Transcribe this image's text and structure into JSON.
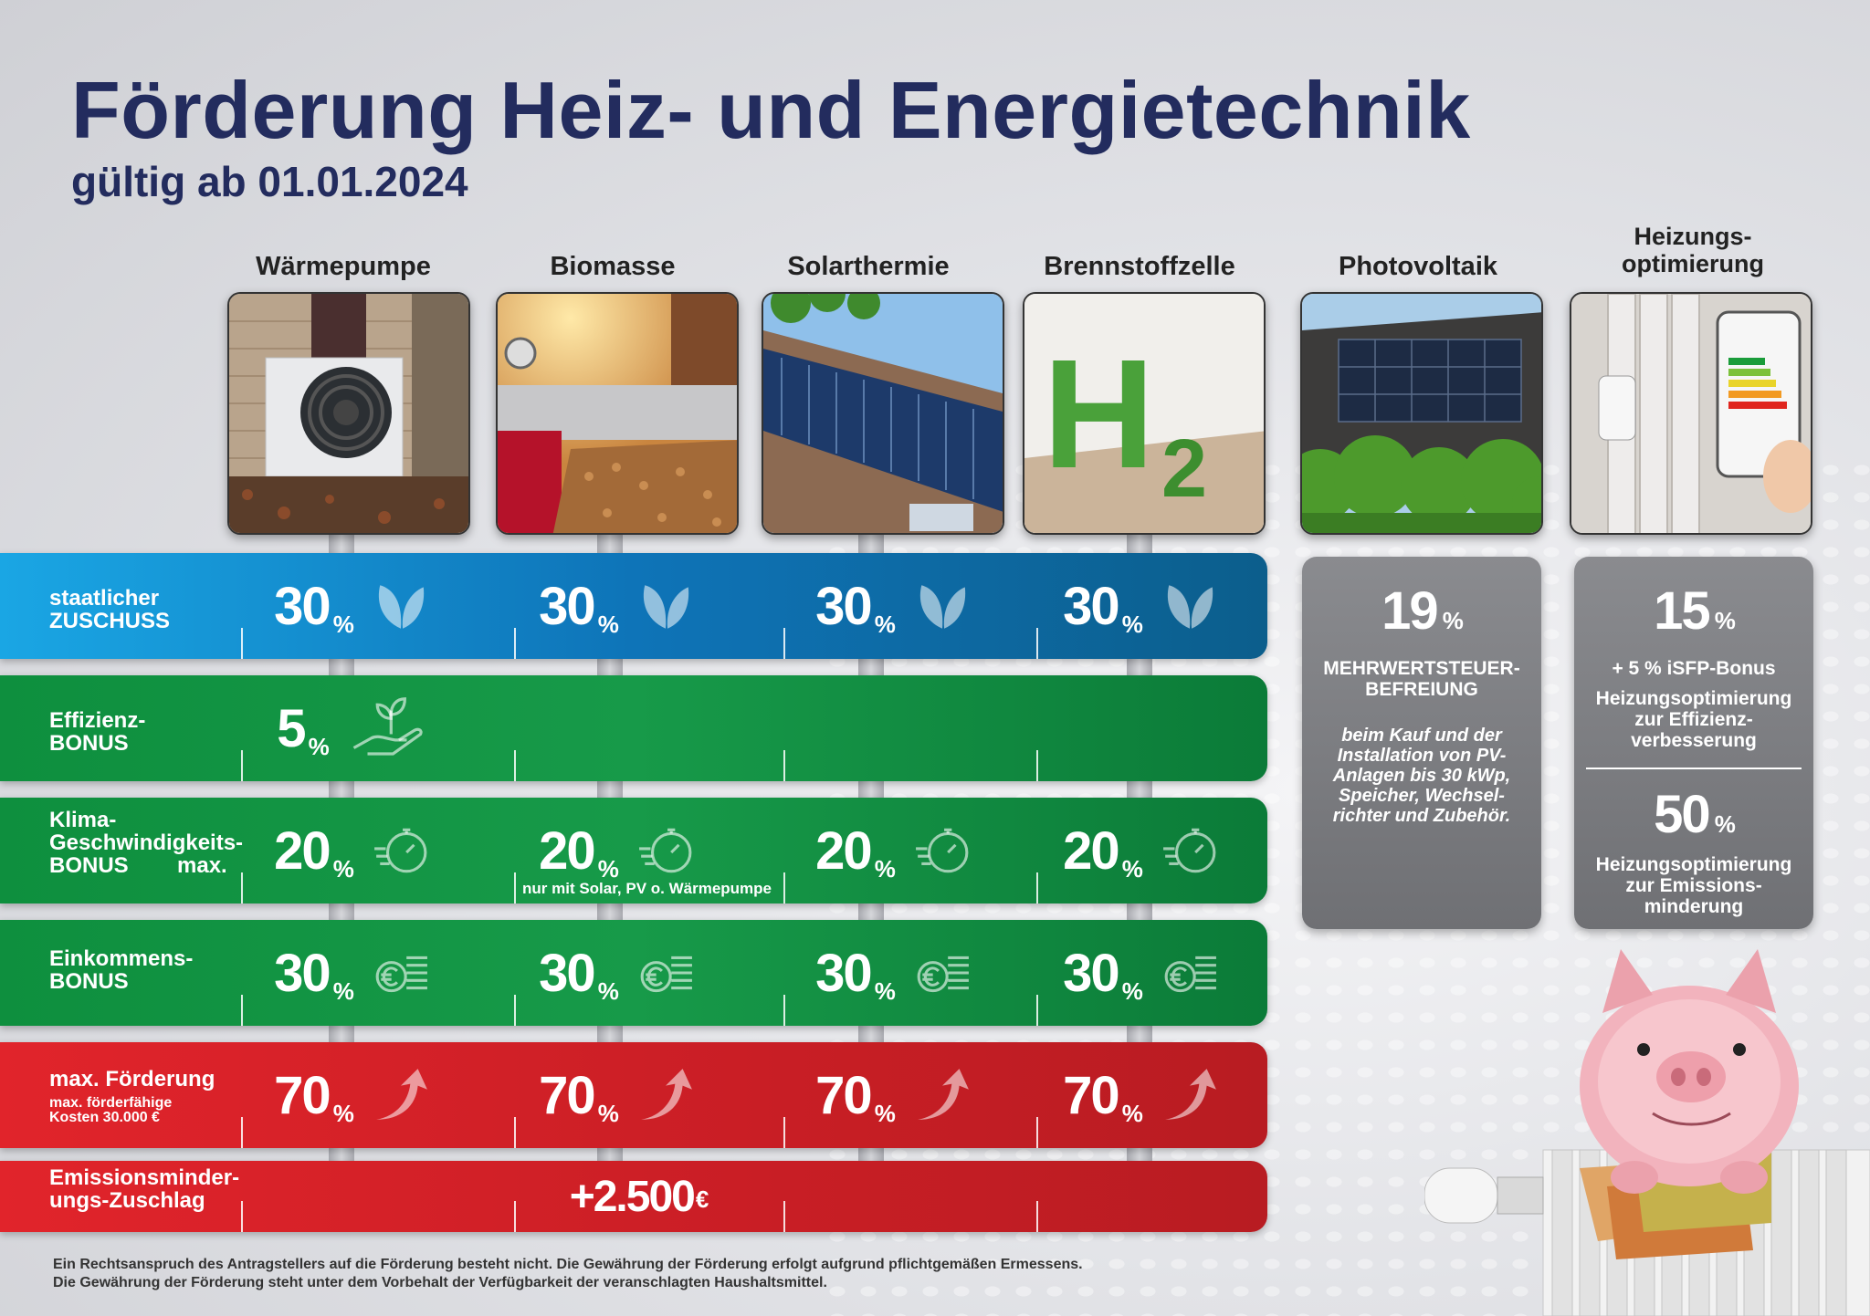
{
  "header": {
    "title": "Förderung Heiz- und Energietechnik",
    "subtitle": "gültig ab 01.01.2024"
  },
  "columns": [
    {
      "label": "Wärmepumpe"
    },
    {
      "label": "Biomasse"
    },
    {
      "label": "Solarthermie"
    },
    {
      "label": "Brennstoffzelle"
    },
    {
      "label": "Photovoltaik"
    },
    {
      "label": "Heizungs-\noptimierung"
    }
  ],
  "rows": {
    "zuschuss": {
      "label_line1": "staatlicher",
      "label_line2": "ZUSCHUSS",
      "values": [
        "30",
        "30",
        "30",
        "30"
      ],
      "unit": "%",
      "icon": "leaf-icon"
    },
    "effizienz": {
      "label_line1": "Effizienz-",
      "label_line2": "BONUS",
      "value": "5",
      "unit": "%",
      "icon": "plant-hand-icon"
    },
    "klima": {
      "label_line1": "Klima-",
      "label_line2": "Geschwindigkeits-",
      "label_line3": "BONUS        max.",
      "values": [
        "20",
        "20",
        "20",
        "20"
      ],
      "unit": "%",
      "note": "nur mit Solar, PV o. Wärmepumpe",
      "icon": "stopwatch-icon"
    },
    "einkommen": {
      "label_line1": "Einkommens-",
      "label_line2": "BONUS",
      "values": [
        "30",
        "30",
        "30",
        "30"
      ],
      "unit": "%",
      "icon": "euro-coins-icon"
    },
    "max": {
      "label_line1": "max. Förderung",
      "label_small1": "max. förderfähige",
      "label_small2": "Kosten 30.000 €",
      "values": [
        "70",
        "70",
        "70",
        "70"
      ],
      "unit": "%",
      "icon": "arrow-up-icon"
    },
    "emission": {
      "label_line1": "Emissionsminder-",
      "label_line2": "ungs-Zuschlag",
      "value": "+2.500",
      "unit": "€"
    }
  },
  "photovoltaik_box": {
    "value": "19",
    "unit": "%",
    "heading1": "MEHRWERTSTEUER-",
    "heading2": "BEFREIUNG",
    "text1": "beim Kauf und der",
    "text2": "Installation von PV-",
    "text3": "Anlagen bis 30 kWp,",
    "text4": "Speicher, Wechsel-",
    "text5": "richter und Zubehör."
  },
  "optimierung_box": {
    "value1": "15",
    "unit": "%",
    "bonus": "+ 5 % iSFP-Bonus",
    "text1a": "Heizungsoptimierung",
    "text1b": "zur Effizienz-",
    "text1c": "verbesserung",
    "value2": "50",
    "text2a": "Heizungsoptimierung",
    "text2b": "zur Emissions-",
    "text2c": "minderung"
  },
  "footer": {
    "line1": "Ein Rechtsanspruch des Antragstellers auf die Förderung besteht nicht. Die Gewährung der Förderung erfolgt aufgrund pflichtgemäßen Ermessens.",
    "line2": "Die Gewährung der Förderung steht unter dem Vorbehalt der Verfügbarkeit der veranschlagten Haushaltsmittel."
  },
  "photo_labels": {
    "h2_text": "H",
    "h2_sub": "2"
  },
  "colors": {
    "title": "#232c5e",
    "blue": "#0e74b8",
    "green": "#179a49",
    "red": "#c91e25",
    "grey": "#7c7d81"
  }
}
